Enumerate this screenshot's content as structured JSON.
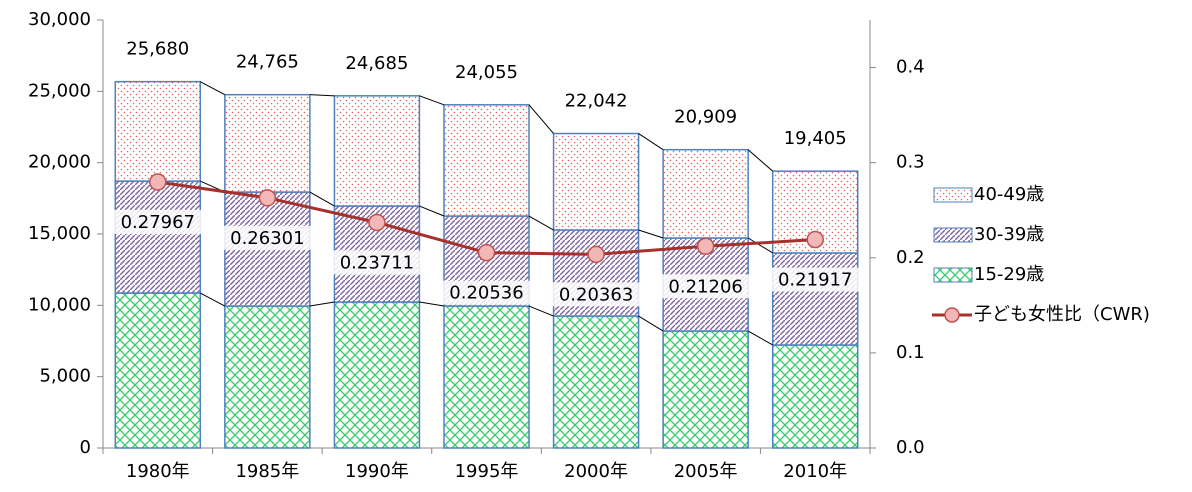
{
  "chart_data": {
    "type": "bar",
    "categories": [
      "1980年",
      "1985年",
      "1990年",
      "1995年",
      "2000年",
      "2005年",
      "2010年"
    ],
    "series": [
      {
        "name": "15-29歳",
        "color": "#33cc66",
        "values": [
          10860,
          9950,
          10230,
          9950,
          9250,
          8200,
          7220
        ]
      },
      {
        "name": "30-39歳",
        "color": "#8064a2",
        "values": [
          7850,
          7990,
          6730,
          6310,
          6030,
          6520,
          6450
        ]
      },
      {
        "name": "40-49歳",
        "color": "#e06666",
        "values": [
          6970,
          6825,
          7725,
          7795,
          6762,
          6189,
          5735
        ]
      },
      {
        "name": "子ども女性比（CWR)",
        "type": "line",
        "axis": "y2",
        "color": "#a5302c",
        "values": [
          0.27967,
          0.26301,
          0.23711,
          0.20536,
          0.20363,
          0.21206,
          0.21917
        ]
      }
    ],
    "totals": {
      "values": [
        25680,
        24765,
        24685,
        24055,
        22042,
        20909,
        19405
      ],
      "value_labels": [
        "25,680",
        "24,765",
        "24,685",
        "24,055",
        "22,042",
        "20,909",
        "19,405"
      ]
    },
    "ylim": [
      0,
      30000
    ],
    "yticks": [
      0,
      {
        "value": 5000,
        "label": "5,000"
      },
      {
        "value": 10000,
        "label": "10,000"
      },
      {
        "value": 15000,
        "label": "15,000"
      },
      {
        "value": 20000,
        "label": "20,000"
      },
      {
        "value": 25000,
        "label": "25,000"
      },
      {
        "value": 30000,
        "label": "30,000"
      }
    ],
    "y2lim": [
      0,
      0.45
    ],
    "y2ticks": [
      {
        "value": 0,
        "label": "0.0"
      },
      0.1,
      0.2,
      0.3,
      0.4
    ],
    "legend": "right"
  }
}
